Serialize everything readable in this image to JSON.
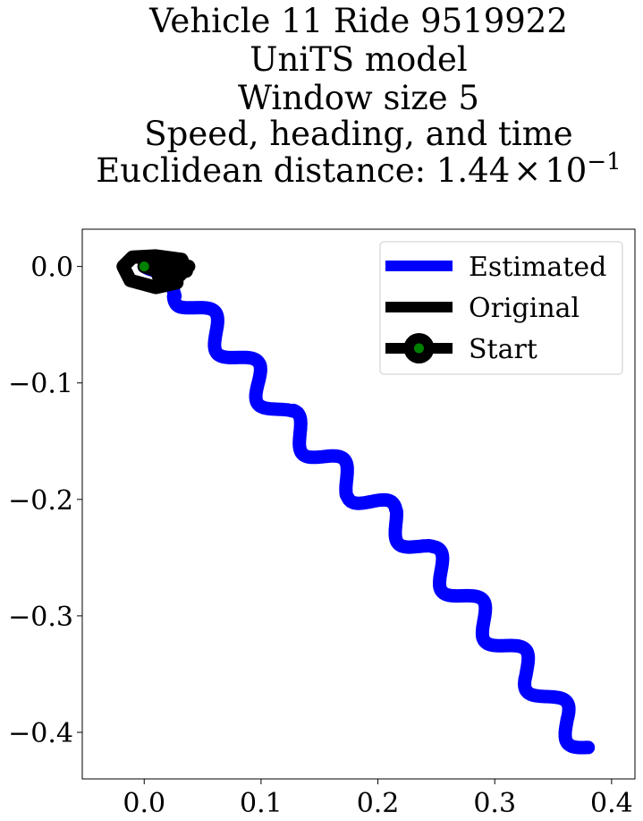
{
  "chart_data": {
    "type": "line",
    "title_lines": [
      "Vehicle 11 Ride 9519922",
      "UniTS model",
      "Window size 5",
      "Speed, heading, and time"
    ],
    "title_distance": {
      "prefix": "Euclidean distance: 1.44",
      "times": "×",
      "base": "10",
      "exponent": "−1"
    },
    "xlim": [
      -0.053,
      0.42
    ],
    "ylim": [
      -0.44,
      0.032
    ],
    "x_ticks": [
      {
        "value": 0.0,
        "label": "0.0"
      },
      {
        "value": 0.1,
        "label": "0.1"
      },
      {
        "value": 0.2,
        "label": "0.2"
      },
      {
        "value": 0.3,
        "label": "0.3"
      },
      {
        "value": 0.4,
        "label": "0.4"
      }
    ],
    "y_ticks": [
      {
        "value": 0.0,
        "label": "0.0"
      },
      {
        "value": -0.1,
        "label": "−0.1"
      },
      {
        "value": -0.2,
        "label": "−0.2"
      },
      {
        "value": -0.3,
        "label": "−0.3"
      },
      {
        "value": -0.4,
        "label": "−0.4"
      }
    ],
    "grid": false,
    "legend_position": "top-right",
    "series": [
      {
        "name": "Estimated",
        "color": "#0000ff",
        "wiggle_amplitude": 0.011,
        "wiggle_cycles": 10,
        "points": [
          [
            0.0,
            0.0
          ],
          [
            0.03,
            -0.02
          ],
          [
            0.06,
            -0.055
          ],
          [
            0.09,
            -0.09
          ],
          [
            0.12,
            -0.13
          ],
          [
            0.15,
            -0.16
          ],
          [
            0.18,
            -0.19
          ],
          [
            0.21,
            -0.215
          ],
          [
            0.24,
            -0.245
          ],
          [
            0.27,
            -0.28
          ],
          [
            0.3,
            -0.315
          ],
          [
            0.33,
            -0.35
          ],
          [
            0.36,
            -0.39
          ],
          [
            0.38,
            -0.413
          ]
        ]
      },
      {
        "name": "Original",
        "color": "#000000",
        "points": [
          [
            0.0,
            0.0
          ],
          [
            0.02,
            0.004
          ],
          [
            0.038,
            0.0
          ],
          [
            0.03,
            -0.008
          ],
          [
            0.012,
            -0.008
          ],
          [
            0.028,
            -0.014
          ],
          [
            0.01,
            -0.018
          ],
          [
            -0.012,
            -0.012
          ],
          [
            -0.018,
            0.0
          ],
          [
            -0.01,
            0.008
          ],
          [
            0.01,
            0.009
          ],
          [
            0.032,
            0.006
          ],
          [
            0.036,
            -0.004
          ],
          [
            0.015,
            -0.005
          ],
          [
            0.0,
            0.0
          ]
        ]
      }
    ],
    "start_marker": {
      "name": "Start",
      "x": 0.0,
      "y": 0.0,
      "color": "#008000",
      "edge_color": "#000000"
    }
  }
}
